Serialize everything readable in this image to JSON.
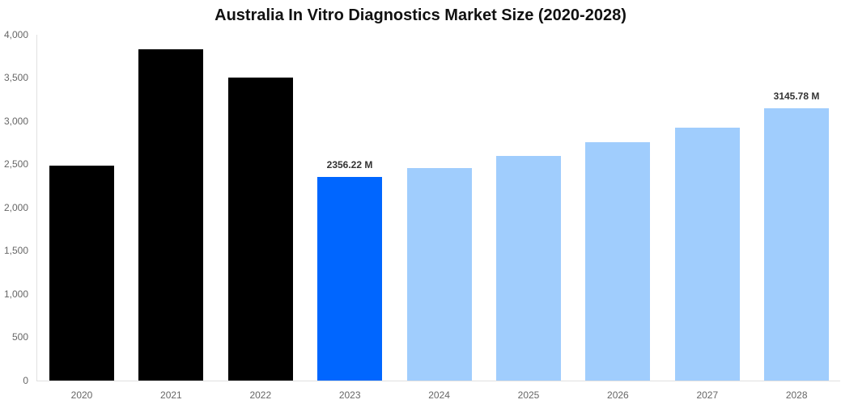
{
  "title": "Australia In Vitro Diagnostics Market Size (2020-2028)",
  "yaxis": {
    "ticks": [
      "0",
      "500",
      "1,000",
      "1,500",
      "2,000",
      "2,500",
      "3,000",
      "3,500",
      "4,000"
    ]
  },
  "colors": {
    "historical": "#000000",
    "base_year": "#0066ff",
    "forecast": "#a0cdfd"
  },
  "annotations": {
    "a2023": "2356.22 M",
    "a2028": "3145.78 M"
  },
  "chart_data": {
    "type": "bar",
    "title": "Australia In Vitro Diagnostics Market Size (2020-2028)",
    "xlabel": "",
    "ylabel": "",
    "ylim": [
      0,
      4000
    ],
    "yticks": [
      0,
      500,
      1000,
      1500,
      2000,
      2500,
      3000,
      3500,
      4000
    ],
    "grid": false,
    "legend": "none",
    "categories": [
      "2020",
      "2021",
      "2022",
      "2023",
      "2024",
      "2025",
      "2026",
      "2027",
      "2028"
    ],
    "values": [
      2486,
      3832,
      3505,
      2356.22,
      2458,
      2598,
      2754,
      2928,
      3145.78
    ],
    "bar_colors": [
      "#000000",
      "#000000",
      "#000000",
      "#0066ff",
      "#a0cdfd",
      "#a0cdfd",
      "#a0cdfd",
      "#a0cdfd",
      "#a0cdfd"
    ],
    "annotations": [
      {
        "category": "2023",
        "text": "2356.22 M"
      },
      {
        "category": "2028",
        "text": "3145.78 M"
      }
    ]
  }
}
